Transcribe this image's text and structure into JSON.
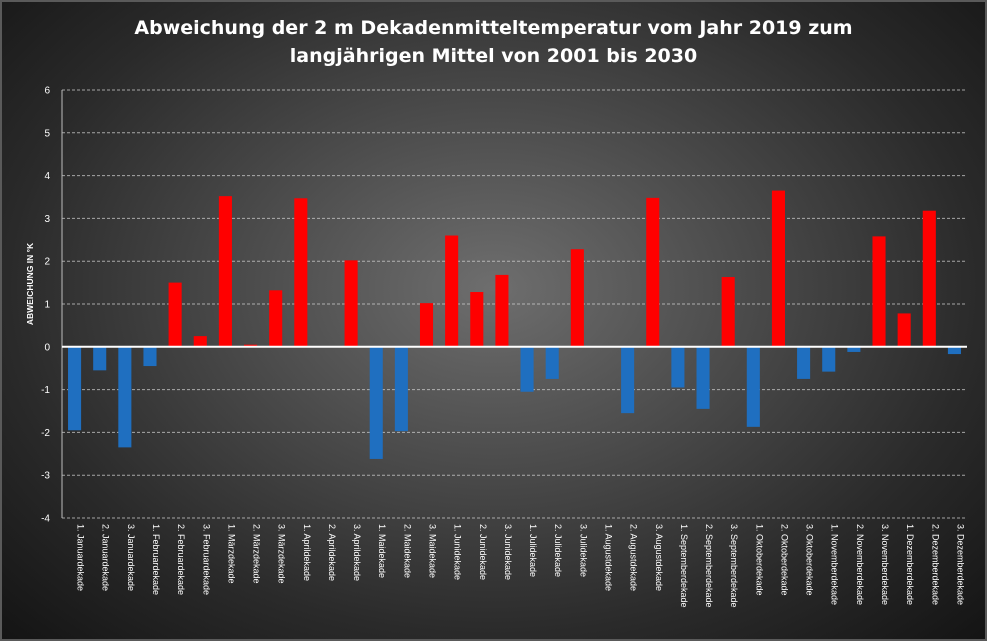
{
  "chart_data": {
    "type": "bar",
    "title_line1": "Abweichung der 2 m Dekadenmitteltemperatur  vom Jahr 2019 zum",
    "title_line2": "langjährigen Mittel von 2001 bis 2030",
    "xlabel": "",
    "ylabel": "ABWEICHUNG IN °K",
    "ylim": [
      -4,
      6
    ],
    "yticks": [
      6,
      5,
      4,
      3,
      2,
      1,
      0,
      -1,
      -2,
      -3,
      -4
    ],
    "grid": true,
    "colors": {
      "positive": "#ff0000",
      "negative": "#1f6fc0",
      "background": "#3a3a3a",
      "zero_line": "#ffffff"
    },
    "categories": [
      "1. Januardekade",
      "2. Januardekade",
      "3. Januardekade",
      "1. Februardekade",
      "2. Februardekade",
      "3. Februardekade",
      "1. Märzdekade",
      "2. Märzdekade",
      "3. Märzdekade",
      "1. Aprildekade",
      "2. Aprildekade",
      "3. Aprildekade",
      "1. Maidekade",
      "2. Maidekade",
      "3. Maidekade",
      "1. Junidekade",
      "2. Junidekade",
      "3. Junidekade",
      "1. Julidekade",
      "2. Julidekade",
      "3. Julidekade",
      "1. Augustdekade",
      "2. Augustdekade",
      "3. Augustdekade",
      "1. Septemberdekade",
      "2. Septemberdekade",
      "3. Septemberdekade",
      "1. Oktoberdekade",
      "2. Oktoberdekade",
      "3. Oktoberdekade",
      "1. Novemberdekade",
      "2. Novemberdekade",
      "3. Novemberdekade",
      "1. Dezemberdekade",
      "2. Dezemberdekade",
      "3. Dezemberdekade"
    ],
    "values": [
      -1.95,
      -0.55,
      -2.35,
      -0.45,
      1.5,
      0.25,
      3.52,
      0.05,
      1.32,
      3.47,
      0.0,
      2.02,
      -2.62,
      -1.97,
      1.02,
      2.6,
      1.28,
      1.68,
      -1.05,
      -0.75,
      2.28,
      0.0,
      -1.55,
      3.48,
      -0.95,
      -1.45,
      1.63,
      -1.87,
      3.65,
      -0.75,
      -0.58,
      -0.12,
      2.58,
      0.78,
      3.18,
      -0.17
    ]
  }
}
